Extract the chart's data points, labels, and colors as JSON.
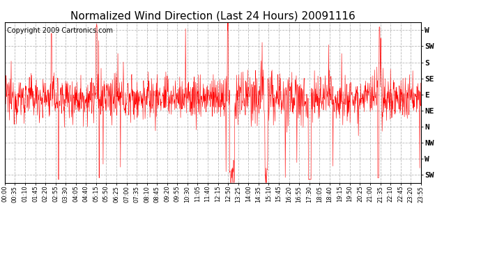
{
  "title": "Normalized Wind Direction (Last 24 Hours) 20091116",
  "copyright_text": "Copyright 2009 Cartronics.com",
  "ytick_labels": [
    "SW",
    "W",
    "NW",
    "N",
    "NE",
    "E",
    "SE",
    "S",
    "SW",
    "W"
  ],
  "ytick_values": [
    1,
    2,
    3,
    4,
    5,
    6,
    7,
    8,
    9,
    10
  ],
  "ylim": [
    0.5,
    10.5
  ],
  "line_color": "#ff0000",
  "background_color": "#ffffff",
  "plot_bg_color": "#ffffff",
  "grid_color": "#b0b0b0",
  "grid_style": "--",
  "title_fontsize": 11,
  "copyright_fontsize": 7,
  "ytick_fontsize": 8,
  "xtick_fontsize": 6,
  "xtick_labels": [
    "00:00",
    "00:35",
    "01:10",
    "01:45",
    "02:20",
    "02:55",
    "03:30",
    "04:05",
    "04:40",
    "05:15",
    "05:50",
    "06:25",
    "07:00",
    "07:35",
    "08:10",
    "08:45",
    "09:20",
    "09:55",
    "10:30",
    "11:05",
    "11:40",
    "12:15",
    "12:50",
    "13:25",
    "14:00",
    "14:35",
    "15:10",
    "15:45",
    "16:20",
    "16:55",
    "17:30",
    "18:05",
    "18:40",
    "19:15",
    "19:50",
    "20:25",
    "21:00",
    "21:35",
    "22:10",
    "22:45",
    "23:20",
    "23:55"
  ],
  "num_points": 1440,
  "base_level": 5.8,
  "base_noise": 0.7
}
